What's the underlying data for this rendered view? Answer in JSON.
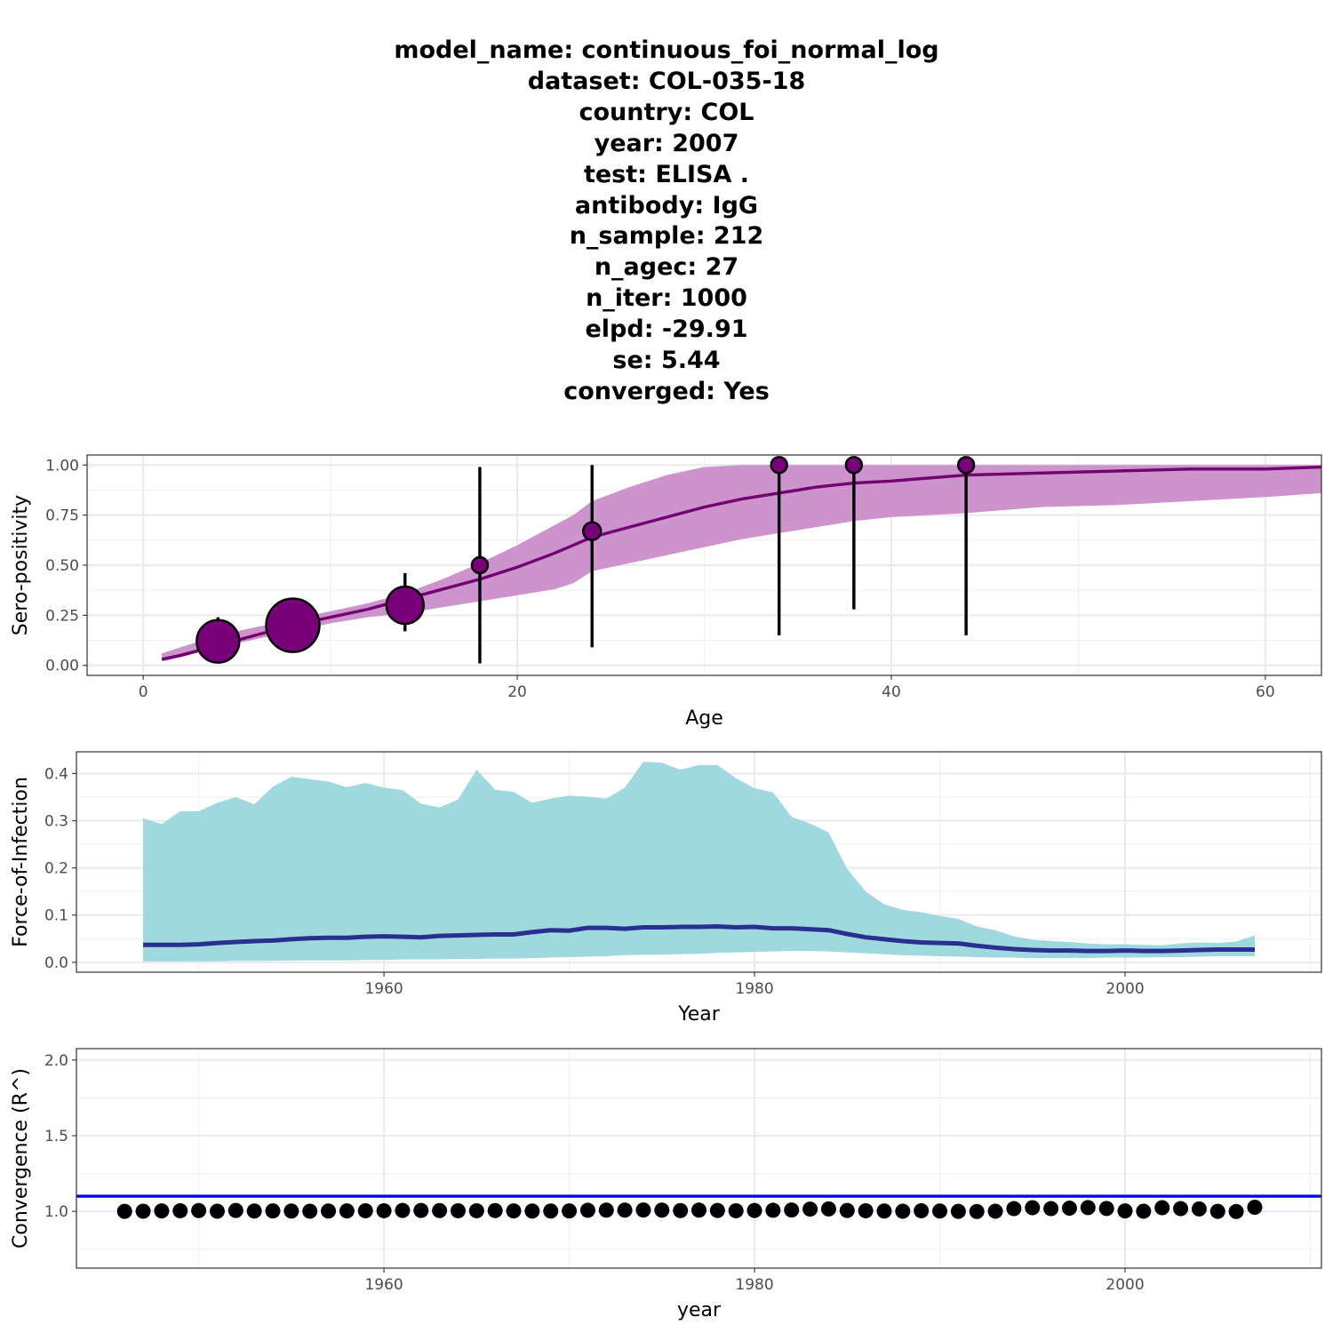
{
  "title_lines": [
    "model_name: continuous_foi_normal_log",
    "dataset: COL-035-18",
    "country: COL",
    "year: 2007",
    "test: ELISA .",
    "antibody: IgG",
    "n_sample: 212",
    "n_agec: 27",
    "n_iter: 1000",
    "elpd: -29.91",
    "se: 5.44",
    "converged: Yes"
  ],
  "colors": {
    "sero_line": "#730073",
    "sero_band": "#cc93cc",
    "sero_point": "#780078",
    "foi_line": "#292f8f",
    "foi_band": "#9fd8de",
    "rhat_line": "#0000ee",
    "rhat_point": "#000000"
  },
  "chart_data": [
    {
      "type": "line",
      "panel": "seroprevalence",
      "xlabel": "Age",
      "ylabel": "Sero-positivity",
      "xlim": [
        -3,
        63
      ],
      "ylim": [
        -0.05,
        1.05
      ],
      "xticks": [
        0,
        20,
        40,
        60
      ],
      "yticks": [
        0.0,
        0.25,
        0.5,
        0.75,
        1.0
      ],
      "ytick_labels": [
        "0.00",
        "0.25",
        "0.50",
        "0.75",
        "1.00"
      ],
      "grid": true,
      "fit": {
        "x": [
          1,
          2,
          4,
          6,
          8,
          10,
          12,
          14,
          16,
          18,
          20,
          22,
          23,
          24,
          26,
          28,
          30,
          32,
          34,
          36,
          38,
          40,
          44,
          48,
          52,
          56,
          60,
          63
        ],
        "mean": [
          0.03,
          0.05,
          0.1,
          0.15,
          0.2,
          0.24,
          0.28,
          0.33,
          0.38,
          0.43,
          0.49,
          0.56,
          0.6,
          0.64,
          0.69,
          0.74,
          0.79,
          0.83,
          0.86,
          0.89,
          0.91,
          0.92,
          0.95,
          0.96,
          0.97,
          0.98,
          0.98,
          0.99
        ],
        "lower": [
          0.02,
          0.04,
          0.09,
          0.13,
          0.17,
          0.21,
          0.24,
          0.26,
          0.29,
          0.32,
          0.35,
          0.38,
          0.41,
          0.47,
          0.51,
          0.55,
          0.59,
          0.63,
          0.66,
          0.69,
          0.72,
          0.74,
          0.76,
          0.79,
          0.8,
          0.82,
          0.84,
          0.86
        ],
        "upper": [
          0.06,
          0.09,
          0.15,
          0.19,
          0.23,
          0.27,
          0.31,
          0.36,
          0.43,
          0.51,
          0.6,
          0.7,
          0.75,
          0.82,
          0.89,
          0.95,
          0.99,
          1.0,
          1.0,
          1.0,
          1.0,
          1.0,
          1.0,
          1.0,
          1.0,
          1.0,
          1.0,
          1.0
        ]
      },
      "observations": {
        "age": [
          4,
          8,
          14,
          18,
          24,
          34,
          38,
          44
        ],
        "prev": [
          0.12,
          0.2,
          0.3,
          0.5,
          0.67,
          1.0,
          1.0,
          1.0
        ],
        "lower": [
          0.03,
          0.13,
          0.17,
          0.01,
          0.09,
          0.15,
          0.28,
          0.15
        ],
        "upper": [
          0.24,
          0.26,
          0.46,
          0.99,
          1.0,
          1.0,
          1.0,
          1.0
        ],
        "size": [
          24,
          30,
          21,
          9,
          10,
          9,
          9,
          9
        ]
      }
    },
    {
      "type": "area",
      "panel": "force-of-infection",
      "xlabel": "Year",
      "ylabel": "Force-of-Infection",
      "xlim": [
        1943.4,
        2010.6
      ],
      "ylim": [
        -0.021,
        0.446
      ],
      "xticks": [
        1960,
        1980,
        2000
      ],
      "yticks": [
        0.0,
        0.1,
        0.2,
        0.3,
        0.4
      ],
      "ytick_labels": [
        "0.0",
        "0.1",
        "0.2",
        "0.3",
        "0.4"
      ],
      "grid": true,
      "x": [
        1947,
        1948,
        1949,
        1950,
        1951,
        1952,
        1953,
        1954,
        1955,
        1956,
        1957,
        1958,
        1959,
        1960,
        1961,
        1962,
        1963,
        1964,
        1965,
        1966,
        1967,
        1968,
        1969,
        1970,
        1971,
        1972,
        1973,
        1974,
        1975,
        1976,
        1977,
        1978,
        1979,
        1980,
        1981,
        1982,
        1983,
        1984,
        1985,
        1986,
        1987,
        1988,
        1989,
        1990,
        1991,
        1992,
        1993,
        1994,
        1995,
        1996,
        1997,
        1998,
        1999,
        2000,
        2001,
        2002,
        2003,
        2004,
        2005,
        2006,
        2007
      ],
      "mean": [
        0.037,
        0.037,
        0.037,
        0.038,
        0.041,
        0.043,
        0.045,
        0.046,
        0.049,
        0.051,
        0.052,
        0.052,
        0.054,
        0.055,
        0.054,
        0.053,
        0.056,
        0.057,
        0.058,
        0.059,
        0.059,
        0.064,
        0.068,
        0.067,
        0.073,
        0.073,
        0.071,
        0.074,
        0.074,
        0.075,
        0.075,
        0.076,
        0.074,
        0.075,
        0.072,
        0.072,
        0.07,
        0.068,
        0.06,
        0.053,
        0.049,
        0.045,
        0.042,
        0.041,
        0.04,
        0.035,
        0.031,
        0.028,
        0.026,
        0.025,
        0.025,
        0.024,
        0.024,
        0.025,
        0.024,
        0.024,
        0.025,
        0.026,
        0.027,
        0.027,
        0.027
      ],
      "lower": [
        0.002,
        0.002,
        0.002,
        0.002,
        0.002,
        0.003,
        0.003,
        0.003,
        0.004,
        0.004,
        0.004,
        0.004,
        0.005,
        0.005,
        0.006,
        0.006,
        0.006,
        0.007,
        0.007,
        0.008,
        0.008,
        0.009,
        0.01,
        0.011,
        0.012,
        0.013,
        0.015,
        0.016,
        0.016,
        0.017,
        0.018,
        0.02,
        0.021,
        0.022,
        0.023,
        0.024,
        0.024,
        0.023,
        0.021,
        0.019,
        0.017,
        0.015,
        0.014,
        0.013,
        0.012,
        0.011,
        0.01,
        0.01,
        0.009,
        0.009,
        0.009,
        0.009,
        0.01,
        0.01,
        0.01,
        0.011,
        0.011,
        0.012,
        0.013,
        0.013,
        0.013
      ],
      "upper": [
        0.305,
        0.293,
        0.32,
        0.32,
        0.338,
        0.35,
        0.335,
        0.372,
        0.393,
        0.388,
        0.383,
        0.371,
        0.38,
        0.37,
        0.365,
        0.336,
        0.328,
        0.345,
        0.408,
        0.366,
        0.361,
        0.338,
        0.347,
        0.353,
        0.351,
        0.347,
        0.37,
        0.425,
        0.423,
        0.408,
        0.418,
        0.418,
        0.39,
        0.369,
        0.36,
        0.308,
        0.294,
        0.275,
        0.198,
        0.15,
        0.123,
        0.111,
        0.106,
        0.098,
        0.092,
        0.076,
        0.068,
        0.055,
        0.048,
        0.045,
        0.043,
        0.04,
        0.038,
        0.038,
        0.037,
        0.036,
        0.04,
        0.042,
        0.041,
        0.044,
        0.057
      ]
    },
    {
      "type": "scatter",
      "panel": "convergence",
      "xlabel": "year",
      "ylabel": "Convergence (R^)",
      "xlim": [
        1943.4,
        2010.6
      ],
      "ylim": [
        0.625,
        2.075
      ],
      "xticks": [
        1960,
        1980,
        2000
      ],
      "yticks": [
        1.0,
        1.5,
        2.0
      ],
      "ytick_labels": [
        "1.0",
        "1.5",
        "2.0"
      ],
      "grid": true,
      "threshold": 1.1,
      "x": [
        1946,
        1947,
        1948,
        1949,
        1950,
        1951,
        1952,
        1953,
        1954,
        1955,
        1956,
        1957,
        1958,
        1959,
        1960,
        1961,
        1962,
        1963,
        1964,
        1965,
        1966,
        1967,
        1968,
        1969,
        1970,
        1971,
        1972,
        1973,
        1974,
        1975,
        1976,
        1977,
        1978,
        1979,
        1980,
        1981,
        1982,
        1983,
        1984,
        1985,
        1986,
        1987,
        1988,
        1989,
        1990,
        1991,
        1992,
        1993,
        1994,
        1995,
        1996,
        1997,
        1998,
        1999,
        2000,
        2001,
        2002,
        2003,
        2004,
        2005,
        2006,
        2007
      ],
      "rhat": [
        1.0,
        1.001,
        1.003,
        1.004,
        1.005,
        1.001,
        1.006,
        1.002,
        1.003,
        1.002,
        1.001,
        1.002,
        1.003,
        1.004,
        1.004,
        1.006,
        1.006,
        1.005,
        1.004,
        1.004,
        1.005,
        1.003,
        1.002,
        1.002,
        1.003,
        1.007,
        1.008,
        1.008,
        1.009,
        1.008,
        1.005,
        1.008,
        1.006,
        1.004,
        1.006,
        1.007,
        1.009,
        1.015,
        1.016,
        1.006,
        1.004,
        1.002,
        1.001,
        1.004,
        1.002,
        1.0,
        0.999,
        1.001,
        1.018,
        1.024,
        1.018,
        1.021,
        1.025,
        1.019,
        1.003,
        1.001,
        1.024,
        1.018,
        1.016,
        1.0,
        0.999,
        1.027
      ]
    }
  ]
}
